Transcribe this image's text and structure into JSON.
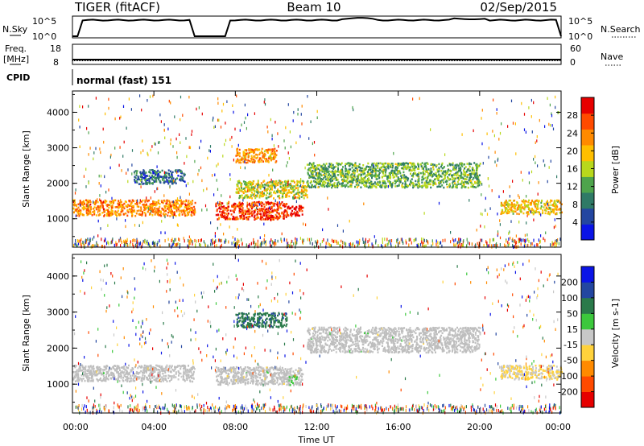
{
  "header": {
    "radar": "TIGER (fitACF)",
    "beam": "Beam 10",
    "date": "02/Sep/2015"
  },
  "sky_panel": {
    "left_label": "N.Sky",
    "right_label": "N.Search",
    "left_ticks": [
      "10^5",
      "10^0"
    ],
    "right_ticks": [
      "10^5",
      "10^0"
    ]
  },
  "freq_panel": {
    "left_label_1": "Freq.",
    "left_label_2": "[MHz]",
    "right_label": "Nave",
    "left_ticks": [
      "18",
      "8"
    ],
    "right_ticks": [
      "60",
      "0"
    ]
  },
  "cpid": {
    "label": "CPID",
    "mode": "normal (fast) 151"
  },
  "colors": {
    "power_scale": [
      "#0a14e6",
      "#2346a0",
      "#2f7a66",
      "#4ea44c",
      "#b8d81c",
      "#ffbf00",
      "#ff8a00",
      "#ff4a00",
      "#e60000"
    ],
    "velocity_scale": [
      "#e60000",
      "#ff4a00",
      "#ff8a00",
      "#ffd23c",
      "#c8c8c8",
      "#3cc83c",
      "#2a7a4a",
      "#2346a0",
      "#0a14e6"
    ],
    "ground_scatter": "#bebebe"
  },
  "chart_data": [
    {
      "type": "heatmap",
      "name": "power",
      "ylabel": "Slant Range [km]",
      "yticks": [
        "1000",
        "2000",
        "3000",
        "4000"
      ],
      "ylim": [
        200,
        4600
      ],
      "xlim": [
        0,
        24
      ],
      "colorbar": {
        "label": "Power [dB]",
        "ticks": [
          "4",
          "8",
          "12",
          "16",
          "20",
          "24",
          "28"
        ],
        "range": [
          0,
          30
        ]
      },
      "regions": [
        {
          "t0": 0.0,
          "t1": 6.0,
          "r0": 1100,
          "r1": 1550,
          "value": 22
        },
        {
          "t0": 7.0,
          "t1": 10.5,
          "r0": 1000,
          "r1": 1500,
          "value": 26
        },
        {
          "t0": 10.5,
          "t1": 11.3,
          "r0": 1100,
          "r1": 1400,
          "value": 29
        },
        {
          "t0": 8.0,
          "t1": 11.5,
          "r0": 1600,
          "r1": 2100,
          "value": 16
        },
        {
          "t0": 8.0,
          "t1": 10.0,
          "r0": 2600,
          "r1": 3000,
          "value": 21
        },
        {
          "t0": 11.5,
          "t1": 20.0,
          "r0": 1900,
          "r1": 2600,
          "value": 12
        },
        {
          "t0": 21.0,
          "t1": 24.0,
          "r0": 1150,
          "r1": 1550,
          "value": 18
        },
        {
          "t0": 3.0,
          "t1": 5.5,
          "r0": 2000,
          "r1": 2400,
          "value": 7
        }
      ]
    },
    {
      "type": "heatmap",
      "name": "velocity",
      "ylabel": "Slant Range [km]",
      "yticks": [
        "1000",
        "2000",
        "3000",
        "4000"
      ],
      "ylim": [
        200,
        4600
      ],
      "xlim": [
        0,
        24
      ],
      "xlabel": "Time UT",
      "xticks": [
        "00:00",
        "04:00",
        "08:00",
        "12:00",
        "16:00",
        "20:00",
        "00:00"
      ],
      "colorbar": {
        "label": "Velocity [m s-1]",
        "ticks": [
          "-200",
          "-100",
          "-50",
          "-15",
          "15",
          "50",
          "100",
          "200"
        ],
        "range": [
          -250,
          250
        ]
      },
      "regions": [
        {
          "t0": 0.0,
          "t1": 6.0,
          "r0": 1100,
          "r1": 1550,
          "value": 0
        },
        {
          "t0": 7.0,
          "t1": 11.3,
          "r0": 1000,
          "r1": 1500,
          "value": 0
        },
        {
          "t0": 8.0,
          "t1": 10.5,
          "r0": 2600,
          "r1": 3000,
          "value": 120
        },
        {
          "t0": 10.5,
          "t1": 11.0,
          "r0": 1050,
          "r1": 1300,
          "value": 30
        },
        {
          "t0": 11.5,
          "t1": 20.0,
          "r0": 1900,
          "r1": 2600,
          "value": 0
        },
        {
          "t0": 21.0,
          "t1": 24.0,
          "r0": 1150,
          "r1": 1550,
          "value": -30
        }
      ]
    }
  ]
}
